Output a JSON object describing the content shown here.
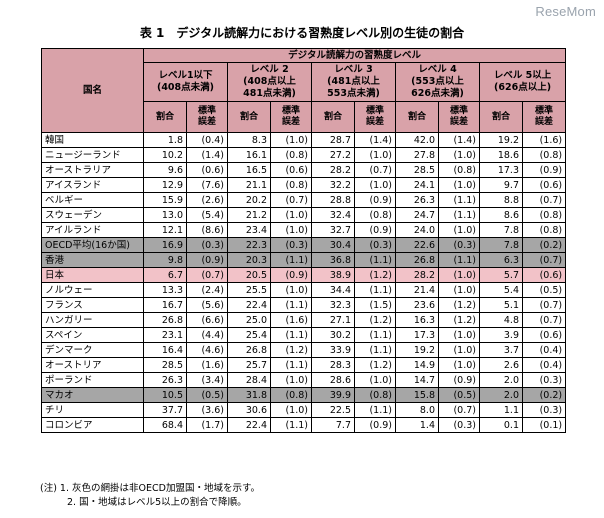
{
  "logo": "ReseMom",
  "title": "表 1　デジタル読解力における習熟度レベル別の生徒の割合",
  "header": {
    "country_label": "国名",
    "group_label": "デジタル読解力の習熟度レベル",
    "levels": [
      {
        "line1": "レベル1以下",
        "line2": "(408点未満)",
        "line3": ""
      },
      {
        "line1": "レベル 2",
        "line2": "(408点以上",
        "line3": "481点未満)"
      },
      {
        "line1": "レベル 3",
        "line2": "(481点以上",
        "line3": "553点未満)"
      },
      {
        "line1": "レベル 4",
        "line2": "(553点以上",
        "line3": "626点未満)"
      },
      {
        "line1": "レベル 5以上",
        "line2": "(626点以上)",
        "line3": ""
      }
    ],
    "pct_label": "割合",
    "se_line1": "標準",
    "se_line2": "誤差"
  },
  "rows": [
    {
      "country": "韓国",
      "style": "white",
      "values": [
        "1.8",
        "(0.4)",
        "8.3",
        "(1.0)",
        "28.7",
        "(1.4)",
        "42.0",
        "(1.4)",
        "19.2",
        "(1.6)"
      ]
    },
    {
      "country": "ニュージーランド",
      "style": "white",
      "values": [
        "10.2",
        "(1.4)",
        "16.1",
        "(0.8)",
        "27.2",
        "(1.0)",
        "27.8",
        "(1.0)",
        "18.6",
        "(0.8)"
      ]
    },
    {
      "country": "オーストラリア",
      "style": "white",
      "values": [
        "9.6",
        "(0.6)",
        "16.5",
        "(0.6)",
        "28.2",
        "(0.7)",
        "28.5",
        "(0.8)",
        "17.3",
        "(0.9)"
      ]
    },
    {
      "country": "アイスランド",
      "style": "white",
      "values": [
        "12.9",
        "(7.6)",
        "21.1",
        "(0.8)",
        "32.2",
        "(1.0)",
        "24.1",
        "(1.0)",
        "9.7",
        "(0.6)"
      ]
    },
    {
      "country": "ベルギー",
      "style": "white",
      "values": [
        "15.9",
        "(2.6)",
        "20.2",
        "(0.7)",
        "28.8",
        "(0.9)",
        "26.3",
        "(1.1)",
        "8.8",
        "(0.7)"
      ]
    },
    {
      "country": "スウェーデン",
      "style": "white",
      "values": [
        "13.0",
        "(5.4)",
        "21.2",
        "(1.0)",
        "32.4",
        "(0.8)",
        "24.7",
        "(1.1)",
        "8.6",
        "(0.8)"
      ]
    },
    {
      "country": "アイルランド",
      "style": "white",
      "values": [
        "12.1",
        "(8.6)",
        "23.4",
        "(1.0)",
        "32.7",
        "(0.9)",
        "24.0",
        "(1.0)",
        "7.8",
        "(0.8)"
      ]
    },
    {
      "country": "OECD平均(16か国)",
      "style": "gray",
      "values": [
        "16.9",
        "(0.3)",
        "22.3",
        "(0.3)",
        "30.4",
        "(0.3)",
        "22.6",
        "(0.3)",
        "7.8",
        "(0.2)"
      ]
    },
    {
      "country": "香港",
      "style": "gray",
      "values": [
        "9.8",
        "(0.9)",
        "20.3",
        "(1.1)",
        "36.8",
        "(1.1)",
        "26.8",
        "(1.1)",
        "6.3",
        "(0.7)"
      ]
    },
    {
      "country": "日本",
      "style": "pink",
      "values": [
        "6.7",
        "(0.7)",
        "20.5",
        "(0.9)",
        "38.9",
        "(1.2)",
        "28.2",
        "(1.0)",
        "5.7",
        "(0.6)"
      ]
    },
    {
      "country": "ノルウェー",
      "style": "white",
      "values": [
        "13.3",
        "(2.4)",
        "25.5",
        "(1.0)",
        "34.4",
        "(1.1)",
        "21.4",
        "(1.0)",
        "5.4",
        "(0.5)"
      ]
    },
    {
      "country": "フランス",
      "style": "white",
      "values": [
        "16.7",
        "(5.6)",
        "22.4",
        "(1.1)",
        "32.3",
        "(1.5)",
        "23.6",
        "(1.2)",
        "5.1",
        "(0.7)"
      ]
    },
    {
      "country": "ハンガリー",
      "style": "white",
      "values": [
        "26.8",
        "(6.6)",
        "25.0",
        "(1.6)",
        "27.1",
        "(1.2)",
        "16.3",
        "(1.2)",
        "4.8",
        "(0.7)"
      ]
    },
    {
      "country": "スペイン",
      "style": "white",
      "values": [
        "23.1",
        "(4.4)",
        "25.4",
        "(1.1)",
        "30.2",
        "(1.1)",
        "17.3",
        "(1.0)",
        "3.9",
        "(0.6)"
      ]
    },
    {
      "country": "デンマーク",
      "style": "white",
      "values": [
        "16.4",
        "(4.6)",
        "26.8",
        "(1.2)",
        "33.9",
        "(1.1)",
        "19.2",
        "(1.0)",
        "3.7",
        "(0.4)"
      ]
    },
    {
      "country": "オーストリア",
      "style": "white",
      "values": [
        "28.5",
        "(1.6)",
        "25.7",
        "(1.1)",
        "28.3",
        "(1.2)",
        "14.9",
        "(1.0)",
        "2.6",
        "(0.4)"
      ]
    },
    {
      "country": "ポーランド",
      "style": "white",
      "values": [
        "26.3",
        "(3.4)",
        "28.4",
        "(1.0)",
        "28.6",
        "(1.0)",
        "14.7",
        "(0.9)",
        "2.0",
        "(0.3)"
      ]
    },
    {
      "country": "マカオ",
      "style": "gray",
      "values": [
        "10.5",
        "(0.5)",
        "31.8",
        "(0.8)",
        "39.9",
        "(0.8)",
        "15.8",
        "(0.5)",
        "2.0",
        "(0.2)"
      ]
    },
    {
      "country": "チリ",
      "style": "white",
      "values": [
        "37.7",
        "(3.6)",
        "30.6",
        "(1.0)",
        "22.5",
        "(1.1)",
        "8.0",
        "(0.7)",
        "1.1",
        "(0.3)"
      ]
    },
    {
      "country": "コロンビア",
      "style": "white",
      "values": [
        "68.4",
        "(1.7)",
        "22.4",
        "(1.1)",
        "7.7",
        "(0.9)",
        "1.4",
        "(0.3)",
        "0.1",
        "(0.1)"
      ]
    }
  ],
  "notes": [
    "(注)  1. 灰色の網掛は非OECD加盟国・地域を示す。",
    "2. 国・地域はレベル5以上の割合で降順。"
  ],
  "colors": {
    "header_bg": "#d9a2a9",
    "gray_row_bg": "#a6a6a6",
    "japan_row_bg": "#f2c2c8"
  }
}
